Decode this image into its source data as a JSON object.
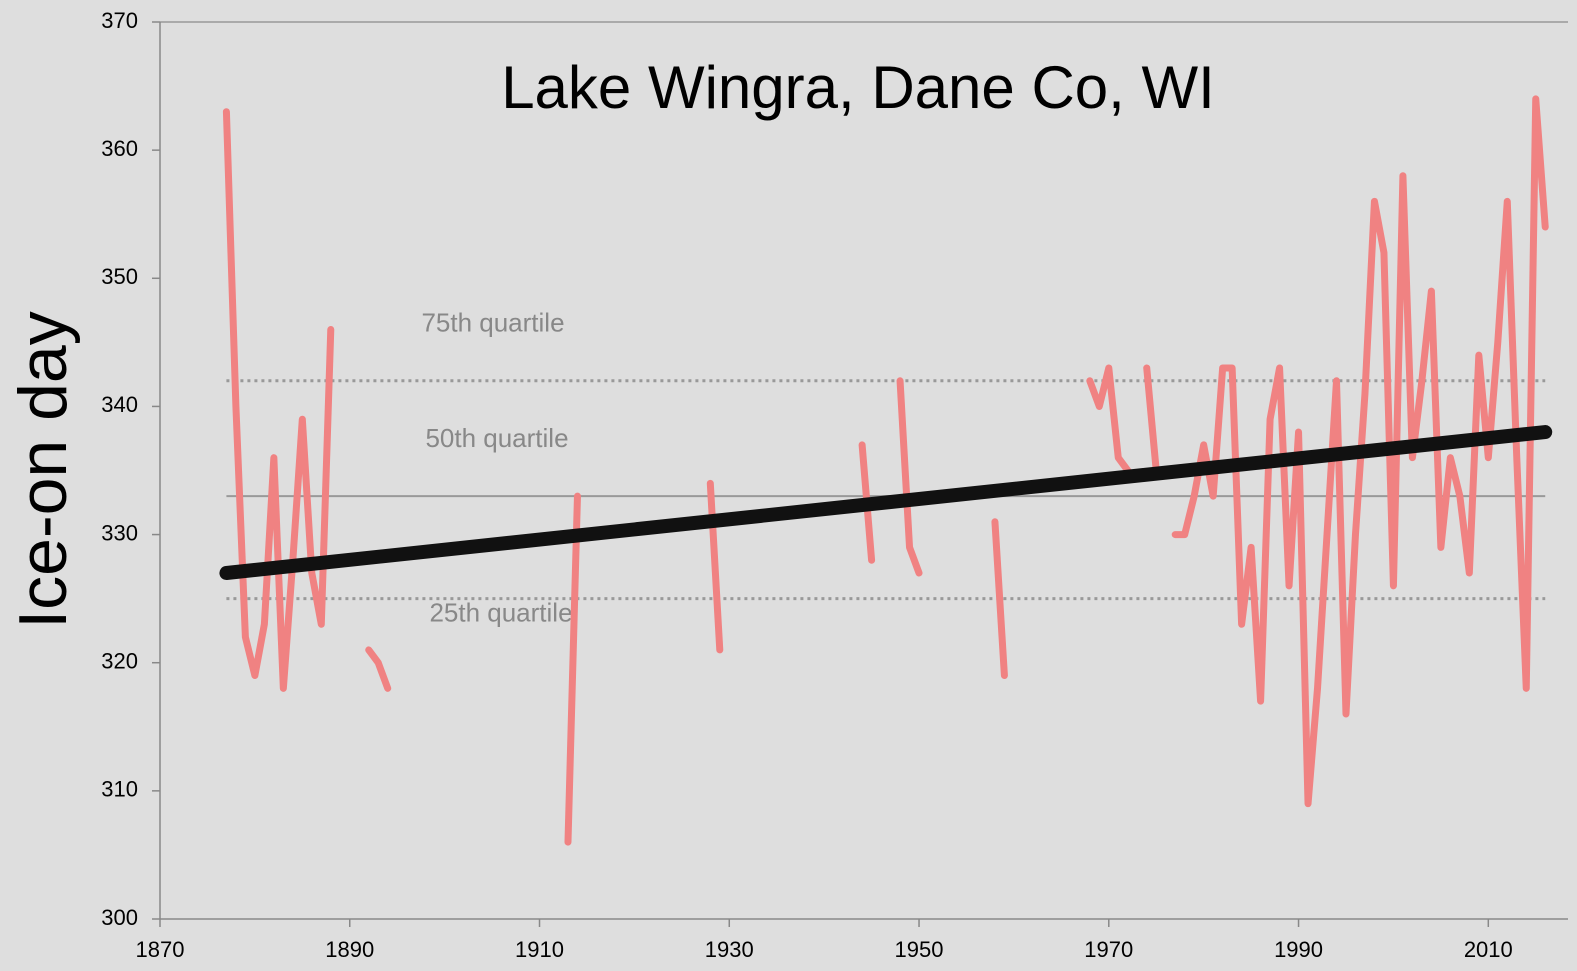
{
  "chart_data": {
    "type": "line",
    "title": "Lake Wingra, Dane Co, WI",
    "ylabel": "Ice-on day",
    "x": [
      1877,
      1878,
      1879,
      1880,
      1881,
      1882,
      1883,
      1884,
      1885,
      1886,
      1887,
      1888,
      1889,
      1890,
      1891,
      1892,
      1893,
      1894,
      1895,
      1896,
      1897,
      1898,
      1899,
      1900,
      1901,
      1902,
      1903,
      1904,
      1905,
      1906,
      1907,
      1908,
      1909,
      1910,
      1911,
      1912,
      1913,
      1914,
      1915,
      1916,
      1917,
      1918,
      1919,
      1920,
      1921,
      1922,
      1923,
      1924,
      1925,
      1926,
      1927,
      1928,
      1929,
      1930,
      1931,
      1932,
      1933,
      1934,
      1935,
      1936,
      1937,
      1938,
      1939,
      1940,
      1941,
      1942,
      1943,
      1944,
      1945,
      1946,
      1947,
      1948,
      1949,
      1950,
      1951,
      1952,
      1953,
      1954,
      1955,
      1956,
      1957,
      1958,
      1959,
      1960,
      1961,
      1962,
      1963,
      1964,
      1965,
      1966,
      1967,
      1968,
      1969,
      1970,
      1971,
      1972,
      1973,
      1974,
      1975,
      1976,
      1977,
      1978,
      1979,
      1980,
      1981,
      1982,
      1983,
      1984,
      1985,
      1986,
      1987,
      1988,
      1989,
      1990,
      1991,
      1992,
      1993,
      1994,
      1995,
      1996,
      1997,
      1998,
      1999,
      2000,
      2001,
      2002,
      2003,
      2004,
      2005,
      2006,
      2007,
      2008,
      2009,
      2010,
      2011,
      2012,
      2013,
      2014,
      2015,
      2016
    ],
    "series": [
      {
        "color": "#f08282",
        "values": [
          363,
          340,
          322,
          319,
          323,
          336,
          318,
          328,
          339,
          327,
          323,
          346,
          null,
          null,
          null,
          321,
          320,
          318,
          null,
          null,
          null,
          null,
          null,
          null,
          null,
          null,
          null,
          null,
          null,
          null,
          null,
          null,
          null,
          null,
          null,
          null,
          306,
          333,
          null,
          null,
          null,
          null,
          null,
          null,
          null,
          null,
          null,
          null,
          null,
          null,
          null,
          334,
          321,
          null,
          null,
          null,
          null,
          null,
          null,
          null,
          null,
          null,
          null,
          null,
          null,
          null,
          null,
          337,
          328,
          null,
          null,
          342,
          329,
          327,
          null,
          null,
          null,
          null,
          null,
          null,
          null,
          331,
          319,
          null,
          null,
          null,
          null,
          null,
          null,
          null,
          null,
          342,
          340,
          343,
          336,
          335,
          null,
          343,
          335,
          null,
          330,
          330,
          333,
          337,
          333,
          343,
          343,
          323,
          329,
          317,
          339,
          343,
          326,
          338,
          309,
          318,
          330,
          342,
          316,
          330,
          341,
          356,
          352,
          326,
          358,
          336,
          342,
          349,
          329,
          336,
          333,
          327,
          344,
          336,
          345,
          356,
          336,
          318,
          364,
          354
        ]
      }
    ],
    "trend": {
      "color": "#111111",
      "x": [
        1877,
        2016
      ],
      "values": [
        327,
        338
      ]
    },
    "annotations": [
      {
        "text": "75th quartile",
        "value": 342,
        "style": "dotted"
      },
      {
        "text": "50th quartile",
        "value": 333,
        "style": "solid"
      },
      {
        "text": "25th quartile",
        "value": 325,
        "style": "dotted"
      }
    ],
    "xlim": [
      1870,
      2018.4
    ],
    "xticks": [
      1870,
      1890,
      1910,
      1930,
      1950,
      1970,
      1990,
      2010
    ],
    "ylim": [
      300,
      370
    ],
    "yticks": [
      300,
      310,
      320,
      330,
      340,
      350,
      360,
      370
    ]
  }
}
